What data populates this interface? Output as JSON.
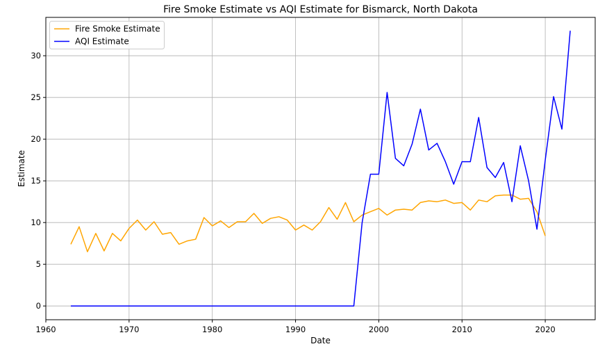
{
  "chart_data": {
    "type": "line",
    "title": "Fire Smoke Estimate vs AQI Estimate for Bismarck, North Dakota",
    "xlabel": "Date",
    "ylabel": "Estimate",
    "xlim": [
      1960,
      2026
    ],
    "ylim": [
      -1.65,
      34.6
    ],
    "xticks": [
      1960,
      1970,
      1980,
      1990,
      2000,
      2010,
      2020
    ],
    "yticks": [
      0,
      5,
      10,
      15,
      20,
      25,
      30
    ],
    "grid": true,
    "legend_position": "upper-left",
    "series": [
      {
        "name": "Fire Smoke Estimate",
        "color": "#ffa500",
        "points": [
          [
            1963,
            7.4
          ],
          [
            1964,
            9.5
          ],
          [
            1965,
            6.5
          ],
          [
            1966,
            8.7
          ],
          [
            1967,
            6.6
          ],
          [
            1968,
            8.7
          ],
          [
            1969,
            7.8
          ],
          [
            1970,
            9.3
          ],
          [
            1971,
            10.3
          ],
          [
            1972,
            9.1
          ],
          [
            1973,
            10.1
          ],
          [
            1974,
            8.6
          ],
          [
            1975,
            8.8
          ],
          [
            1976,
            7.4
          ],
          [
            1977,
            7.8
          ],
          [
            1978,
            8.0
          ],
          [
            1979,
            10.6
          ],
          [
            1980,
            9.6
          ],
          [
            1981,
            10.2
          ],
          [
            1982,
            9.4
          ],
          [
            1983,
            10.1
          ],
          [
            1984,
            10.1
          ],
          [
            1985,
            11.1
          ],
          [
            1986,
            9.9
          ],
          [
            1987,
            10.5
          ],
          [
            1988,
            10.7
          ],
          [
            1989,
            10.3
          ],
          [
            1990,
            9.1
          ],
          [
            1991,
            9.7
          ],
          [
            1992,
            9.1
          ],
          [
            1993,
            10.1
          ],
          [
            1994,
            11.8
          ],
          [
            1995,
            10.4
          ],
          [
            1996,
            12.4
          ],
          [
            1997,
            10.1
          ],
          [
            1998,
            10.9
          ],
          [
            1999,
            11.3
          ],
          [
            2000,
            11.7
          ],
          [
            2001,
            10.9
          ],
          [
            2002,
            11.5
          ],
          [
            2003,
            11.6
          ],
          [
            2004,
            11.5
          ],
          [
            2005,
            12.4
          ],
          [
            2006,
            12.6
          ],
          [
            2007,
            12.5
          ],
          [
            2008,
            12.7
          ],
          [
            2009,
            12.3
          ],
          [
            2010,
            12.4
          ],
          [
            2011,
            11.5
          ],
          [
            2012,
            12.7
          ],
          [
            2013,
            12.5
          ],
          [
            2014,
            13.2
          ],
          [
            2015,
            13.3
          ],
          [
            2016,
            13.3
          ],
          [
            2017,
            12.8
          ],
          [
            2018,
            12.9
          ],
          [
            2019,
            11.3
          ],
          [
            2020,
            8.4
          ]
        ]
      },
      {
        "name": "AQI Estimate",
        "color": "#0000ff",
        "points": [
          [
            1963,
            0
          ],
          [
            1997,
            0
          ],
          [
            1998,
            10.0
          ],
          [
            1999,
            15.8
          ],
          [
            2000,
            15.8
          ],
          [
            2001,
            25.6
          ],
          [
            2002,
            17.7
          ],
          [
            2003,
            16.8
          ],
          [
            2004,
            19.4
          ],
          [
            2005,
            23.6
          ],
          [
            2006,
            18.7
          ],
          [
            2007,
            19.5
          ],
          [
            2008,
            17.3
          ],
          [
            2009,
            14.6
          ],
          [
            2010,
            17.3
          ],
          [
            2011,
            17.3
          ],
          [
            2012,
            22.6
          ],
          [
            2013,
            16.6
          ],
          [
            2014,
            15.4
          ],
          [
            2015,
            17.2
          ],
          [
            2016,
            12.5
          ],
          [
            2017,
            19.2
          ],
          [
            2018,
            15.0
          ],
          [
            2019,
            9.2
          ],
          [
            2020,
            17.5
          ],
          [
            2021,
            25.1
          ],
          [
            2022,
            21.2
          ],
          [
            2023,
            33.0
          ]
        ]
      }
    ]
  }
}
